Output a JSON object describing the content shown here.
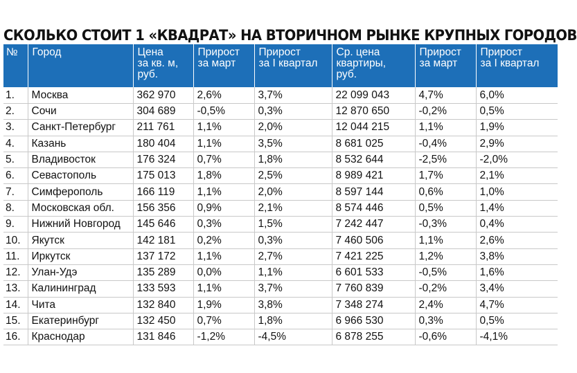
{
  "title": "СКОЛЬКО СТОИТ 1 «КВАДРАТ» НА ВТОРИЧНОМ РЫНКЕ КРУПНЫХ ГОРОДОВ",
  "colors": {
    "header_bg": "#1d6fb8",
    "header_text": "#ffffff",
    "divider": "#c8c8c8"
  },
  "headers": [
    "№",
    "Город",
    "Цена\nза кв. м,\nруб.",
    "Прирост\nза март",
    "Прирост\nза I квартал",
    "Ср. цена\nквартиры,\nруб.",
    "Прирост\nза март",
    "Прирост\nза I квартал"
  ],
  "rows": [
    [
      "1.",
      "Москва",
      "362 970",
      "2,6%",
      "3,7%",
      "22 099 043",
      "4,7%",
      "6,0%"
    ],
    [
      "2.",
      "Сочи",
      "304 689",
      "-0,5%",
      "0,3%",
      "12 870 650",
      "-0,2%",
      "0,5%"
    ],
    [
      "3.",
      "Санкт-Петербург",
      "211 761",
      "1,1%",
      "2,0%",
      "12 044 215",
      "1,1%",
      "1,9%"
    ],
    [
      "4.",
      "Казань",
      "180 404",
      "1,1%",
      "3,5%",
      "8 681 025",
      "-0,4%",
      "2,9%"
    ],
    [
      "5.",
      "Владивосток",
      "176 324",
      "0,7%",
      "1,8%",
      "8 532 644",
      "-2,5%",
      "-2,0%"
    ],
    [
      "6.",
      "Севастополь",
      "175 013",
      "1,8%",
      "2,5%",
      "8 989 421",
      "1,7%",
      "2,1%"
    ],
    [
      "7.",
      "Симферополь",
      "166 119",
      "1,1%",
      "2,0%",
      "8 597 144",
      "0,6%",
      "1,0%"
    ],
    [
      "8.",
      "Московская обл.",
      "156 356",
      "0,9%",
      "2,1%",
      "8 574 446",
      "0,5%",
      "1,4%"
    ],
    [
      "9.",
      "Нижний Новгород",
      "145 646",
      "0,3%",
      "1,5%",
      "7 242 447",
      "-0,3%",
      "0,4%"
    ],
    [
      "10.",
      "Якутск",
      "142 181",
      "0,2%",
      "0,3%",
      "7 460 506",
      "1,1%",
      "2,6%"
    ],
    [
      "11.",
      "Иркутск",
      "137 172",
      "1,1%",
      "2,7%",
      "7 421 225",
      "1,2%",
      "3,8%"
    ],
    [
      "12.",
      "Улан-Удэ",
      "135 289",
      "0,0%",
      "1,1%",
      "6 601 533",
      "-0,5%",
      "1,6%"
    ],
    [
      "13.",
      "Калининград",
      "133 593",
      "1,1%",
      "3,7%",
      "7 760 839",
      "-0,2%",
      "3,4%"
    ],
    [
      "14.",
      "Чита",
      "132 840",
      "1,9%",
      "3,8%",
      "7 348 274",
      "2,4%",
      "4,7%"
    ],
    [
      "15.",
      "Екатеринбург",
      "132 450",
      "0,7%",
      "1,8%",
      "6 966 530",
      "0,3%",
      "0,5%"
    ],
    [
      "16.",
      "Краснодар",
      "131 846",
      "-1,2%",
      "-4,5%",
      "6 878 255",
      "-0,6%",
      "-4,1%"
    ]
  ]
}
